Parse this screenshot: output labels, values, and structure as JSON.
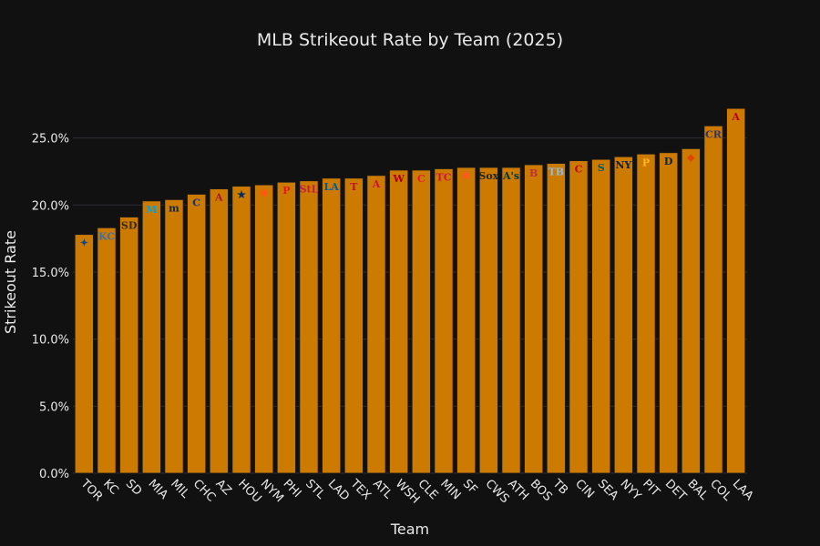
{
  "chart_data": {
    "type": "bar",
    "title": "MLB Strikeout Rate by Team (2025)",
    "xlabel": "Team",
    "ylabel": "Strikeout Rate",
    "ylim": [
      0,
      0.285
    ],
    "yticks": [
      0,
      0.05,
      0.1,
      0.15,
      0.2,
      0.25
    ],
    "ytick_labels": [
      "0.0%",
      "5.0%",
      "10.0%",
      "15.0%",
      "20.0%",
      "25.0%"
    ],
    "grid": true,
    "categories": [
      "TOR",
      "KC",
      "SD",
      "MIA",
      "MIL",
      "CHC",
      "AZ",
      "HOU",
      "NYM",
      "PHI",
      "STL",
      "LAD",
      "TEX",
      "ATL",
      "WSH",
      "CLE",
      "MIN",
      "SF",
      "CWS",
      "ATH",
      "BOS",
      "TB",
      "CIN",
      "SEA",
      "NYY",
      "PIT",
      "DET",
      "BAL",
      "COL",
      "LAA"
    ],
    "values": [
      0.178,
      0.183,
      0.191,
      0.203,
      0.204,
      0.208,
      0.212,
      0.214,
      0.215,
      0.217,
      0.218,
      0.22,
      0.22,
      0.222,
      0.226,
      0.226,
      0.227,
      0.228,
      0.228,
      0.228,
      0.23,
      0.231,
      0.233,
      0.234,
      0.236,
      0.238,
      0.239,
      0.242,
      0.259,
      0.272
    ],
    "bar_color": "#cc7a00",
    "logos": [
      {
        "team": "TOR",
        "glyph": "✦",
        "color": "#134a8e"
      },
      {
        "team": "KC",
        "glyph": "KC",
        "color": "#3a6fa8"
      },
      {
        "team": "SD",
        "glyph": "SD",
        "color": "#3b2a1a"
      },
      {
        "team": "MIA",
        "glyph": "M",
        "color": "#00a3e0"
      },
      {
        "team": "MIL",
        "glyph": "m",
        "color": "#12284b"
      },
      {
        "team": "CHC",
        "glyph": "C",
        "color": "#0e3386"
      },
      {
        "team": "AZ",
        "glyph": "A",
        "color": "#a71930"
      },
      {
        "team": "HOU",
        "glyph": "★",
        "color": "#002d62"
      },
      {
        "team": "NYM",
        "glyph": "✱",
        "color": "#ff5910"
      },
      {
        "team": "PHI",
        "glyph": "P",
        "color": "#e81828"
      },
      {
        "team": "STL",
        "glyph": "StL",
        "color": "#c41e3a"
      },
      {
        "team": "LAD",
        "glyph": "LA",
        "color": "#005a9c"
      },
      {
        "team": "TEX",
        "glyph": "T",
        "color": "#c0111f"
      },
      {
        "team": "ATL",
        "glyph": "A",
        "color": "#ce1141"
      },
      {
        "team": "WSH",
        "glyph": "W",
        "color": "#ab0003"
      },
      {
        "team": "CLE",
        "glyph": "C",
        "color": "#e31937"
      },
      {
        "team": "MIN",
        "glyph": "TC",
        "color": "#d31145"
      },
      {
        "team": "SF",
        "glyph": "✱",
        "color": "#fd5a1e"
      },
      {
        "team": "CWS",
        "glyph": "Sox",
        "color": "#27251f"
      },
      {
        "team": "ATH",
        "glyph": "A's",
        "color": "#003831"
      },
      {
        "team": "BOS",
        "glyph": "B",
        "color": "#bd3039"
      },
      {
        "team": "TB",
        "glyph": "TB",
        "color": "#8fbce6"
      },
      {
        "team": "CIN",
        "glyph": "C",
        "color": "#c6011f"
      },
      {
        "team": "SEA",
        "glyph": "S",
        "color": "#005c5c"
      },
      {
        "team": "NYY",
        "glyph": "NY",
        "color": "#0c2340"
      },
      {
        "team": "PIT",
        "glyph": "P",
        "color": "#fdb827"
      },
      {
        "team": "DET",
        "glyph": "D",
        "color": "#0c2340"
      },
      {
        "team": "BAL",
        "glyph": "◆",
        "color": "#df4601"
      },
      {
        "team": "COL",
        "glyph": "CR",
        "color": "#333366"
      },
      {
        "team": "LAA",
        "glyph": "A",
        "color": "#ba0021"
      }
    ]
  }
}
